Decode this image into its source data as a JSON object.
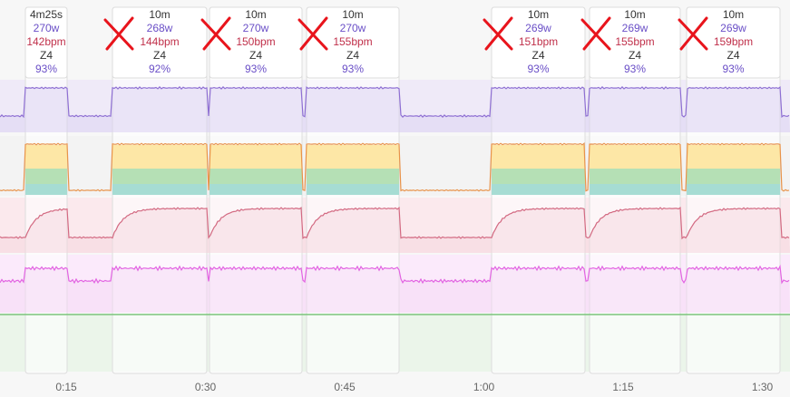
{
  "intervals": [
    {
      "duration": "4m25s",
      "power": "270w",
      "hr": "142bpm",
      "zone": "Z4",
      "percent": "93%"
    },
    {
      "duration": "10m",
      "power": "268w",
      "hr": "144bpm",
      "zone": "Z4",
      "percent": "92%"
    },
    {
      "duration": "10m",
      "power": "270w",
      "hr": "150bpm",
      "zone": "Z4",
      "percent": "93%"
    },
    {
      "duration": "10m",
      "power": "270w",
      "hr": "155bpm",
      "zone": "Z4",
      "percent": "93%"
    },
    {
      "duration": "10m",
      "power": "269w",
      "hr": "151bpm",
      "zone": "Z4",
      "percent": "93%"
    },
    {
      "duration": "10m",
      "power": "269w",
      "hr": "155bpm",
      "zone": "Z4",
      "percent": "93%"
    },
    {
      "duration": "10m",
      "power": "269w",
      "hr": "159bpm",
      "zone": "Z4",
      "percent": "93%"
    }
  ],
  "time_axis": [
    "0:15",
    "0:30",
    "0:45",
    "1:00",
    "1:15",
    "1:30"
  ]
}
